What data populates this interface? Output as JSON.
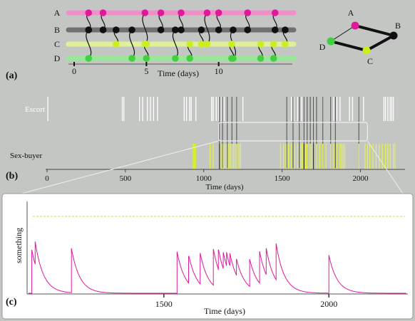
{
  "panel_a": {
    "label": "(a)",
    "rows": [
      "A",
      "B",
      "C",
      "D"
    ],
    "xlabel": "Time (days)",
    "ticks": [
      {
        "v": 0,
        "label": "0"
      },
      {
        "v": 5,
        "label": "5"
      },
      {
        "v": 10,
        "label": "10"
      }
    ],
    "xmax": 15,
    "row_colors": [
      "#f090c8",
      "#707070",
      "#e0f098",
      "#98e898"
    ],
    "node_colors": [
      "#e0189c",
      "#101010",
      "#c8f020",
      "#40d040"
    ],
    "contacts": [
      {
        "t": 1.0,
        "from": "A",
        "to": "B"
      },
      {
        "t": 2.0,
        "from": "A",
        "to": "B"
      },
      {
        "t": 4.9,
        "from": "A",
        "to": "C"
      },
      {
        "t": 6.0,
        "from": "A",
        "to": "B"
      },
      {
        "t": 7.4,
        "from": "A",
        "to": "B"
      },
      {
        "t": 9.2,
        "from": "A",
        "to": "C"
      },
      {
        "t": 10.0,
        "from": "A",
        "to": "B"
      },
      {
        "t": 12.0,
        "from": "A",
        "to": "B"
      },
      {
        "t": 13.9,
        "from": "A",
        "to": "B"
      },
      {
        "t": 1.0,
        "from": "B",
        "to": "D"
      },
      {
        "t": 2.9,
        "from": "B",
        "to": "C"
      },
      {
        "t": 4.0,
        "from": "B",
        "to": "D"
      },
      {
        "t": 7.0,
        "from": "B",
        "to": "D"
      },
      {
        "t": 8.8,
        "from": "B",
        "to": "C"
      },
      {
        "t": 11.0,
        "from": "B",
        "to": "D"
      },
      {
        "t": 14.6,
        "from": "B",
        "to": "C"
      },
      {
        "t": 5.0,
        "from": "C",
        "to": "D"
      },
      {
        "t": 8.0,
        "from": "C",
        "to": "D"
      },
      {
        "t": 10.9,
        "from": "C",
        "to": "D"
      },
      {
        "t": 12.9,
        "from": "C",
        "to": "D"
      },
      {
        "t": 13.8,
        "from": "C",
        "to": "D"
      }
    ]
  },
  "graph": {
    "nodes": [
      {
        "id": "A",
        "color": "#e0189c"
      },
      {
        "id": "B",
        "color": "#101010"
      },
      {
        "id": "C",
        "color": "#c8f020"
      },
      {
        "id": "D",
        "color": "#40d040"
      }
    ],
    "edges": [
      {
        "from": "A",
        "to": "B",
        "weight": "heavy"
      },
      {
        "from": "B",
        "to": "C",
        "weight": "heavy"
      },
      {
        "from": "C",
        "to": "D",
        "weight": "heavy"
      },
      {
        "from": "A",
        "to": "D",
        "weight": "light"
      }
    ]
  },
  "panel_b": {
    "label": "(b)",
    "escort_label": "Escort",
    "buyer_label": "Sex-buyer",
    "xlabel": "Time (days)",
    "xmin": 0,
    "xmax": 2230,
    "ticks": [
      0,
      500,
      1000,
      1500,
      2000
    ],
    "tick_labels": [
      "0",
      "500",
      "1000",
      "1500",
      "2000"
    ],
    "escort_white": [
      5,
      480,
      490,
      590,
      610,
      640,
      660,
      680,
      705,
      875,
      890,
      910,
      920,
      950,
      1050,
      1060,
      1080,
      1095,
      1115,
      1130,
      1210,
      1250,
      1560,
      1575,
      1600,
      1625,
      1640,
      1700,
      1760,
      1830,
      1850,
      1870,
      1930,
      1950,
      1990,
      2020,
      2150,
      2160,
      2175,
      2190,
      2200,
      2210
    ],
    "escort_dark": [
      1100,
      1120,
      1150,
      1180,
      1210,
      1530,
      1570,
      1610,
      1640,
      1660,
      1680,
      1700,
      1720,
      1760,
      1810,
      1840,
      1990
    ],
    "buyer_block": [
      930,
      950
    ],
    "buyer_lines": [
      1040,
      1060,
      1100,
      1115,
      1125,
      1135,
      1145,
      1160,
      1170,
      1180,
      1190,
      1200,
      1210,
      1225,
      1235,
      1490,
      1510,
      1525,
      1540,
      1560,
      1580,
      1600,
      1620,
      1630,
      1650,
      1660,
      1680,
      1690,
      1700,
      1720,
      1740,
      1760,
      1780,
      1810,
      1830,
      1850,
      1870,
      1880,
      1890,
      1900,
      1990,
      2030,
      2045,
      2060,
      2080,
      2100,
      2120,
      2140,
      2160,
      2175,
      2190,
      2210,
      2220
    ],
    "buyer_dark": [
      1100,
      1640,
      1700
    ],
    "zoom_window": [
      1095,
      2045
    ]
  },
  "panel_c": {
    "label": "(c)",
    "ylabel": "something",
    "xlabel": "Time (days)",
    "xmin": 1090,
    "xmax": 2235,
    "ymin": 0,
    "ymax": 1.0,
    "ticks": [
      1500,
      2000
    ],
    "tick_labels": [
      "1500",
      "2000"
    ],
    "threshold": 0.85,
    "decay_days": 25,
    "contacts": [
      {
        "t": 1100,
        "jump": 0.48
      },
      {
        "t": 1110,
        "jump": 0.25
      },
      {
        "t": 1220,
        "jump": 0.49
      },
      {
        "t": 1540,
        "jump": 0.46
      },
      {
        "t": 1575,
        "jump": 0.3
      },
      {
        "t": 1610,
        "jump": 0.34
      },
      {
        "t": 1650,
        "jump": 0.4
      },
      {
        "t": 1665,
        "jump": 0.22
      },
      {
        "t": 1680,
        "jump": 0.18
      },
      {
        "t": 1690,
        "jump": 0.15
      },
      {
        "t": 1700,
        "jump": 0.14
      },
      {
        "t": 1720,
        "jump": 0.18
      },
      {
        "t": 1760,
        "jump": 0.3
      },
      {
        "t": 1790,
        "jump": 0.35
      },
      {
        "t": 1810,
        "jump": 0.29
      },
      {
        "t": 1840,
        "jump": 0.4
      },
      {
        "t": 2000,
        "jump": 0.42
      }
    ]
  }
}
